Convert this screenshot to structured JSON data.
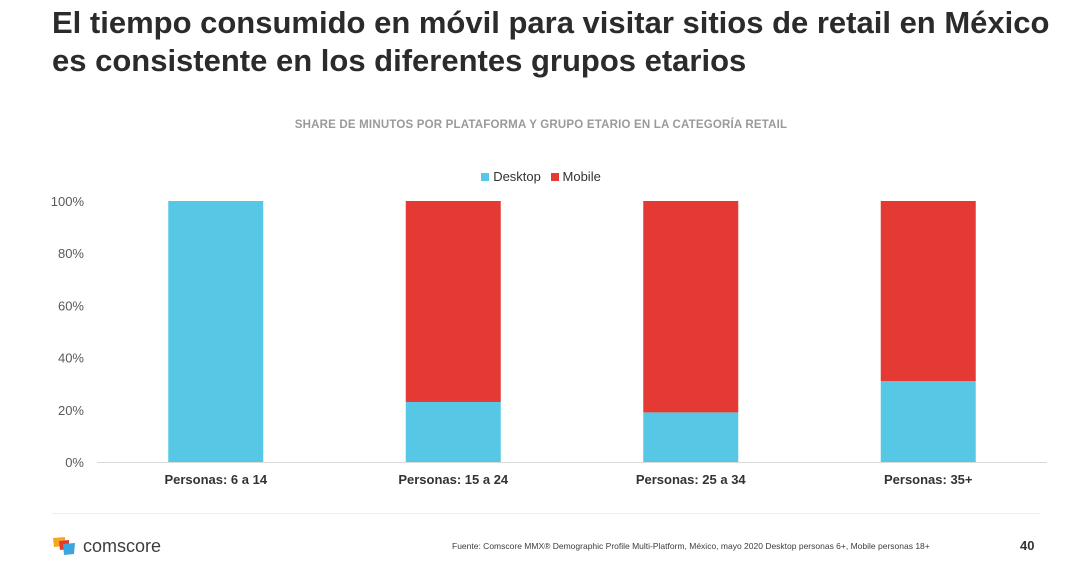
{
  "slide": {
    "title": "El tiempo consumido en móvil para visitar sitios de retail en México es consistente en los diferentes grupos etarios",
    "footnote": "Fuente: Comscore MMX® Demographic Profile Multi-Platform, México, mayo 2020 Desktop personas 6+, Mobile personas 18+",
    "page_number": "40",
    "logo_text": "comscore"
  },
  "chart_data": {
    "type": "bar",
    "stacked": true,
    "title": "SHARE DE MINUTOS POR PLATAFORMA Y GRUPO ETARIO EN LA CATEGORÍA RETAIL",
    "categories": [
      "Personas: 6 a 14",
      "Personas: 15 a 24",
      "Personas: 25 a 34",
      "Personas: 35+"
    ],
    "series": [
      {
        "name": "Desktop",
        "color": "#56c8e6",
        "values": [
          100,
          23,
          19,
          31
        ]
      },
      {
        "name": "Mobile",
        "color": "#e53a33",
        "values": [
          0,
          77,
          81,
          69
        ]
      }
    ],
    "ylim": [
      0,
      100
    ],
    "yticks": [
      "0%",
      "20%",
      "40%",
      "60%",
      "80%",
      "100%"
    ],
    "legend_position": "top",
    "grid": false
  }
}
